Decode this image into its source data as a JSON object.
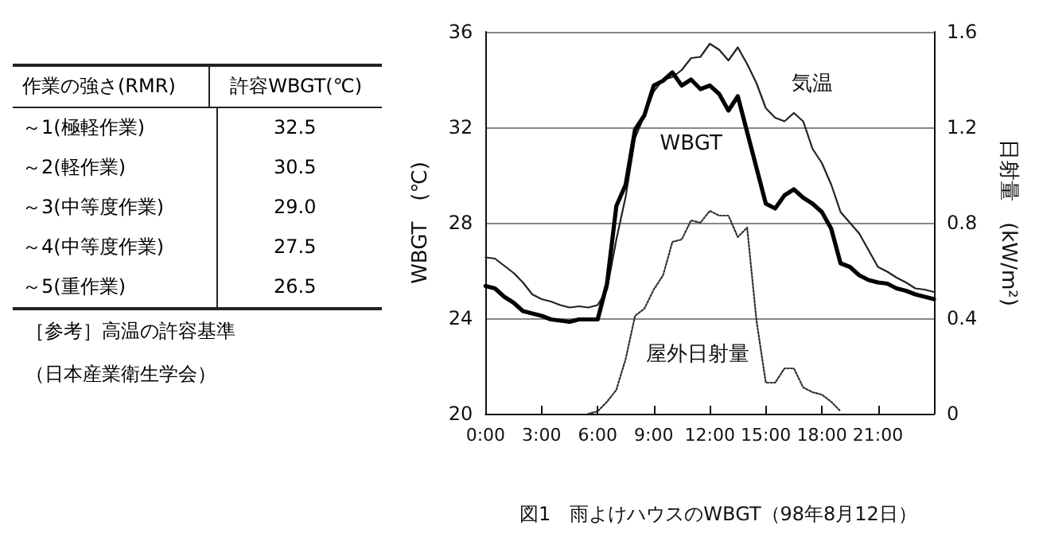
{
  "chart_data": [
    {
      "type": "other",
      "xlabel": "作業の強さ(RMR)",
      "ylabel": "許容WBGT(℃)",
      "categories": [
        "～1(極軽作業)",
        "～2(軽作業)",
        "～3(中等度作業)",
        "～4(中等度作業)",
        "～5(重作業)"
      ],
      "annotations": [
        "32.5",
        "30.5",
        "29.0",
        "27.5",
        "26.5",
        "［参考］高温の許容基準",
        "（日本産業衛生学会）"
      ]
    },
    {
      "type": "line",
      "title": "図1　雨よけハウスのWBGT（98年8月12日）",
      "ylabel": "WBGT　(℃)",
      "y2label": "日射量　(kW/m²)",
      "xlim": [
        0,
        24
      ],
      "xticks": [
        {
          "value": 0,
          "label": "0:00"
        },
        {
          "value": 3,
          "label": "3:00"
        },
        {
          "value": 6,
          "label": "6:00"
        },
        {
          "value": 9,
          "label": "9:00"
        },
        {
          "value": 12,
          "label": "12:00"
        },
        {
          "value": 15,
          "label": "15:00"
        },
        {
          "value": 18,
          "label": "18:00"
        },
        {
          "value": 21,
          "label": "21:00"
        },
        {
          "value": 24,
          "label": null
        }
      ],
      "ylim": [
        20,
        36
      ],
      "yticks": [
        20,
        24,
        28,
        32,
        36
      ],
      "y2lim": [
        0,
        1.6
      ],
      "y2ticks": [
        0,
        0.4,
        0.8,
        1.2,
        1.6
      ],
      "grid": "y",
      "marker": "none",
      "x": [
        0,
        0.5,
        1,
        1.5,
        2,
        2.5,
        3,
        3.5,
        4,
        4.5,
        5,
        5.5,
        6,
        6.5,
        7,
        7.5,
        8,
        8.5,
        9,
        9.5,
        10,
        10.5,
        11,
        11.5,
        12,
        12.5,
        13,
        13.5,
        14,
        14.5,
        15,
        15.5,
        16,
        16.5,
        17,
        17.5,
        18,
        18.5,
        19,
        19.5,
        20,
        20.5,
        21,
        21.5,
        22,
        22.5,
        23,
        23.5,
        24
      ],
      "series": [
        {
          "color": "#222222",
          "line_style": "solid",
          "values": [
            26.55,
            26.5,
            26.2,
            25.9,
            25.5,
            25.0,
            24.8,
            24.7,
            24.55,
            24.45,
            24.5,
            24.45,
            24.55,
            25.2,
            27.3,
            29.1,
            31.55,
            32.5,
            33.5,
            34.0,
            34.1,
            34.4,
            34.9,
            34.95,
            35.5,
            35.25,
            34.8,
            35.35,
            34.65,
            33.85,
            32.8,
            32.4,
            32.25,
            32.6,
            32.25,
            31.1,
            30.5,
            29.6,
            28.45,
            28.0,
            27.55,
            26.85,
            26.15,
            25.95,
            25.7,
            25.5,
            25.25,
            25.2,
            25.1
          ]
        },
        {
          "color": "#000000",
          "line_style": "solid",
          "values": [
            25.35,
            25.25,
            24.9,
            24.65,
            24.3,
            24.2,
            24.1,
            23.95,
            23.9,
            23.85,
            23.95,
            23.95,
            23.95,
            25.45,
            28.7,
            29.6,
            31.9,
            32.5,
            33.75,
            33.95,
            34.3,
            33.75,
            34.0,
            33.6,
            33.75,
            33.4,
            32.7,
            33.3,
            31.8,
            30.3,
            28.8,
            28.6,
            29.15,
            29.4,
            29.05,
            28.8,
            28.45,
            27.75,
            26.3,
            26.15,
            25.8,
            25.6,
            25.5,
            25.45,
            25.25,
            25.15,
            25.0,
            24.9,
            24.8
          ]
        },
        {
          "color": "#333333",
          "line_style": "dotted",
          "axis": "y2",
          "x": [
            5.5,
            6,
            6.5,
            7,
            7.5,
            8,
            8.5,
            9,
            9.5,
            10,
            10.5,
            11,
            11.5,
            12,
            12.5,
            13,
            13.5,
            14,
            14.5,
            15,
            15.5,
            16,
            16.5,
            17,
            17.5,
            18,
            18.5,
            19
          ],
          "values": [
            0,
            0.01,
            0.05,
            0.1,
            0.23,
            0.41,
            0.44,
            0.52,
            0.58,
            0.72,
            0.73,
            0.81,
            0.8,
            0.85,
            0.83,
            0.83,
            0.74,
            0.78,
            0.39,
            0.13,
            0.13,
            0.19,
            0.19,
            0.11,
            0.09,
            0.08,
            0.05,
            0.01
          ]
        }
      ],
      "annotations": [
        {
          "text": "気温",
          "x": 17.5,
          "y": 33.8
        },
        {
          "text": "WBGT",
          "x": 11,
          "y": 31.3
        },
        "屋外日射量"
      ]
    }
  ]
}
